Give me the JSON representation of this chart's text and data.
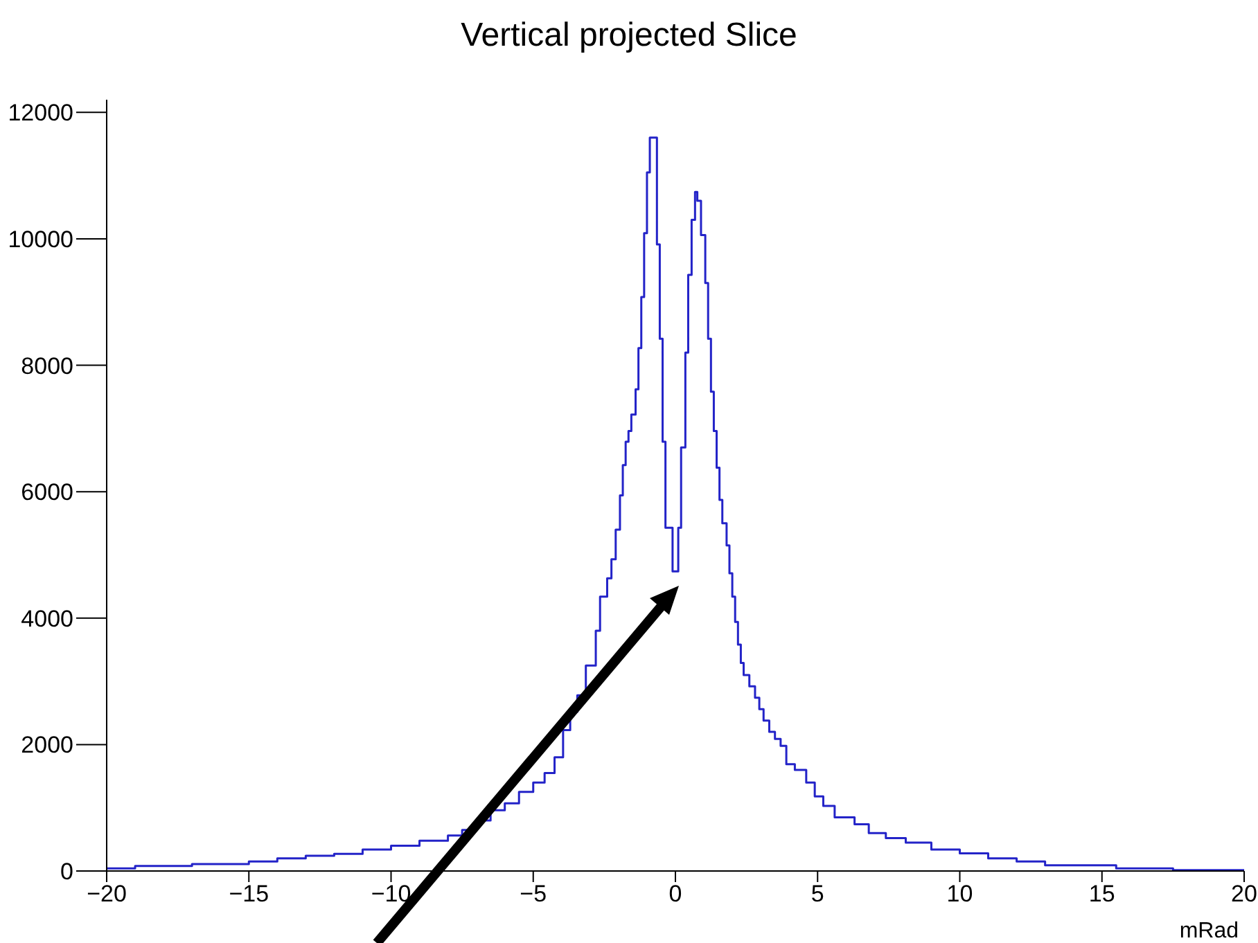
{
  "chart_data": {
    "type": "histogram",
    "title": "Vertical projected Slice",
    "xlabel": "mRad",
    "bins": [
      -20,
      -19,
      -17,
      -15,
      -14,
      -13,
      -12,
      -11,
      -10,
      -9,
      -8,
      -7.5,
      -7,
      -6.5,
      -6,
      -5.5,
      -5,
      -4.6,
      -4.25,
      -3.95,
      -3.7,
      -3.45,
      -3.15,
      -2.8,
      -2.65,
      -2.4,
      -2.25,
      -2.1,
      -1.95,
      -1.85,
      -1.75,
      -1.65,
      -1.55,
      -1.4,
      -1.3,
      -1.2,
      -1.1,
      -1.0,
      -0.9,
      -0.65,
      -0.55,
      -0.45,
      -0.35,
      -0.1,
      0.1,
      0.2,
      0.35,
      0.45,
      0.57,
      0.69,
      0.77,
      0.9,
      1.05,
      1.15,
      1.25,
      1.35,
      1.45,
      1.55,
      1.65,
      1.8,
      1.9,
      2.0,
      2.1,
      2.2,
      2.3,
      2.4,
      2.6,
      2.8,
      2.95,
      3.1,
      3.3,
      3.5,
      3.7,
      3.9,
      4.2,
      4.6,
      4.9,
      5.2,
      5.6,
      6.3,
      6.8,
      7.4,
      8.1,
      9,
      10,
      11,
      12,
      13,
      15.5,
      17.5,
      20
    ],
    "values": [
      40,
      80,
      110,
      150,
      200,
      240,
      270,
      340,
      400,
      480,
      560,
      650,
      800,
      960,
      1070,
      1250,
      1400,
      1550,
      1800,
      2230,
      2520,
      2780,
      3250,
      3800,
      4340,
      4630,
      4930,
      5400,
      5940,
      6420,
      6790,
      6960,
      7220,
      7620,
      8270,
      9080,
      10090,
      11050,
      11600,
      9910,
      8420,
      6790,
      5430,
      4740,
      5430,
      6700,
      8200,
      9430,
      10300,
      10740,
      10600,
      10060,
      9300,
      8420,
      7580,
      6960,
      6380,
      5870,
      5500,
      5150,
      4710,
      4340,
      3940,
      3580,
      3290,
      3100,
      2920,
      2740,
      2560,
      2380,
      2200,
      2090,
      1980,
      1690,
      1600,
      1400,
      1180,
      1030,
      850,
      740,
      600,
      520,
      450,
      340,
      280,
      200,
      150,
      90,
      40,
      15
    ],
    "color": "#2323c8",
    "xlim": [
      -20,
      20
    ],
    "xticks": [
      -20,
      -15,
      -10,
      -5,
      0,
      5,
      10,
      15,
      20
    ],
    "ylim": [
      0,
      12200
    ],
    "yticks": [
      0,
      2000,
      4000,
      6000,
      8000,
      10000,
      12000
    ],
    "grid": false,
    "legend": false
  }
}
